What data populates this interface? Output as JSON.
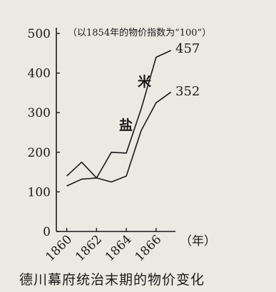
{
  "chart_data": {
    "type": "line",
    "title": "",
    "note": "（以1854年的物价指数为“100”）",
    "xlabel": "（年）",
    "ylabel": "",
    "ylim": [
      0,
      500
    ],
    "xlim": [
      1859.3,
      1867.3
    ],
    "y_ticks": [
      0,
      100,
      200,
      300,
      400,
      500
    ],
    "x_ticks": [
      1860,
      1862,
      1864,
      1866
    ],
    "series": [
      {
        "name": "米",
        "x": [
          1860,
          1861,
          1862,
          1863,
          1864,
          1865,
          1866,
          1867
        ],
        "y": [
          140,
          175,
          135,
          200,
          198,
          310,
          440,
          457
        ]
      },
      {
        "name": "盐",
        "x": [
          1860,
          1861,
          1862,
          1863,
          1864,
          1865,
          1866,
          1867
        ],
        "y": [
          115,
          132,
          135,
          125,
          140,
          255,
          325,
          352
        ]
      }
    ],
    "end_labels": [
      "457",
      "352"
    ]
  },
  "caption": "德川幕府统治末期的物价变化"
}
